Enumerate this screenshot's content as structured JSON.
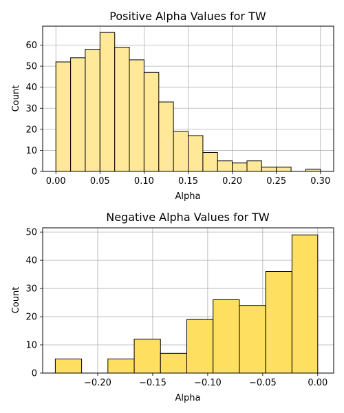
{
  "chart_data": [
    {
      "type": "histogram",
      "title": "Positive Alpha Values for TW",
      "xlabel": "Alpha",
      "ylabel": "Count",
      "xlim": [
        -0.015,
        0.315
      ],
      "ylim": [
        0,
        69
      ],
      "xticks": [
        0.0,
        0.05,
        0.1,
        0.15,
        0.2,
        0.25,
        0.3
      ],
      "xtick_labels": [
        "0.00",
        "0.05",
        "0.10",
        "0.15",
        "0.20",
        "0.25",
        "0.30"
      ],
      "yticks": [
        0,
        10,
        20,
        30,
        40,
        50,
        60
      ],
      "ytick_labels": [
        "0",
        "10",
        "20",
        "30",
        "40",
        "50",
        "60"
      ],
      "bin_edges": [
        0.0,
        0.0167,
        0.0333,
        0.05,
        0.0667,
        0.0833,
        0.1,
        0.1167,
        0.1333,
        0.15,
        0.1667,
        0.1833,
        0.2,
        0.2167,
        0.2333,
        0.25,
        0.2667,
        0.2833,
        0.3
      ],
      "counts": [
        52,
        54,
        58,
        66,
        59,
        53,
        47,
        33,
        19,
        17,
        9,
        5,
        4,
        5,
        2,
        2,
        0,
        1
      ],
      "bar_color": "#ffe999",
      "edge_color": "#000000",
      "grid": true
    },
    {
      "type": "histogram",
      "title": "Negative Alpha Values for TW",
      "xlabel": "Alpha",
      "ylabel": "Count",
      "xlim": [
        -0.25,
        0.0145
      ],
      "ylim": [
        0,
        51.5
      ],
      "xticks": [
        -0.2,
        -0.15,
        -0.1,
        -0.05,
        0.0
      ],
      "xtick_labels": [
        "−0.20",
        "−0.15",
        "−0.10",
        "−0.05",
        "0.00"
      ],
      "yticks": [
        0,
        10,
        20,
        30,
        40,
        50
      ],
      "ytick_labels": [
        "0",
        "10",
        "20",
        "30",
        "40",
        "50"
      ],
      "bin_edges": [
        -0.2385,
        -0.2146,
        -0.1907,
        -0.1668,
        -0.1429,
        -0.119,
        -0.0951,
        -0.0712,
        -0.0473,
        -0.0234,
        0.0
      ],
      "counts": [
        5,
        0,
        5,
        12,
        7,
        19,
        26,
        24,
        36,
        49
      ],
      "bar_color": "#ffdf5f",
      "edge_color": "#000000",
      "grid": true
    }
  ]
}
